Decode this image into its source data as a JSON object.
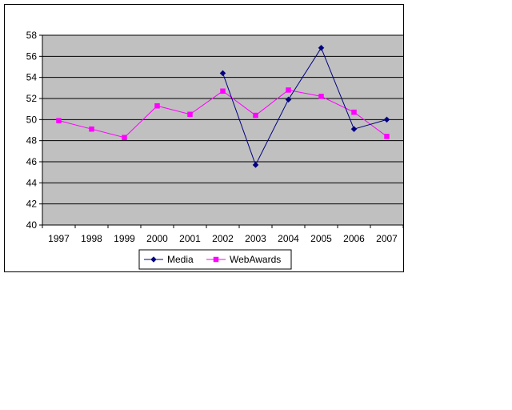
{
  "chart_data": {
    "type": "line",
    "title": "",
    "xlabel": "",
    "ylabel": "",
    "categories": [
      "1997",
      "1998",
      "1999",
      "2000",
      "2001",
      "2002",
      "2003",
      "2004",
      "2005",
      "2006",
      "2007"
    ],
    "ylim": [
      40,
      58
    ],
    "yticks": [
      "40",
      "42",
      "44",
      "46",
      "48",
      "50",
      "52",
      "54",
      "56",
      "58"
    ],
    "grid": true,
    "legend_position": "bottom",
    "plot_background": "#c0c0c0",
    "series": [
      {
        "name": "Media",
        "color": "#000080",
        "marker": "diamond",
        "values": [
          null,
          null,
          null,
          null,
          null,
          54.4,
          45.7,
          51.9,
          56.8,
          49.1,
          50.0
        ]
      },
      {
        "name": "WebAwards",
        "color": "#ff00ff",
        "marker": "square",
        "values": [
          49.9,
          49.1,
          48.3,
          51.3,
          50.5,
          52.7,
          50.4,
          52.8,
          52.2,
          50.7,
          48.4
        ]
      }
    ]
  }
}
